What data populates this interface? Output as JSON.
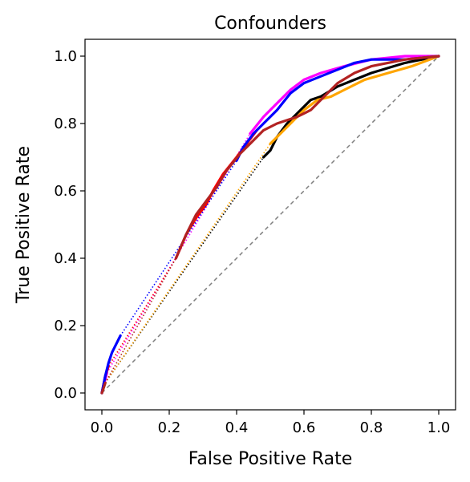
{
  "chart_data": {
    "type": "line",
    "title": "Confounders",
    "xlabel": "False Positive Rate",
    "ylabel": "True Positive Rate",
    "xlim": [
      -0.05,
      1.05
    ],
    "ylim": [
      -0.05,
      1.05
    ],
    "xticks": [
      0.0,
      0.2,
      0.4,
      0.6,
      0.8,
      1.0
    ],
    "yticks": [
      0.0,
      0.2,
      0.4,
      0.6,
      0.8,
      1.0
    ],
    "xtick_labels": [
      "0.0",
      "0.2",
      "0.4",
      "0.6",
      "0.8",
      "1.0"
    ],
    "ytick_labels": [
      "0.0",
      "0.2",
      "0.4",
      "0.6",
      "0.8",
      "1.0"
    ],
    "grid": false,
    "reference_line": {
      "points": [
        [
          0,
          0
        ],
        [
          1,
          1
        ]
      ],
      "color": "#808080",
      "style": "dashed"
    },
    "series": [
      {
        "color": "#000000",
        "gap_style": "dotted",
        "segments": [
          [
            [
              0,
              0
            ],
            [
              0.01,
              0.03
            ]
          ],
          [
            [
              0.48,
              0.7
            ],
            [
              0.5,
              0.72
            ],
            [
              0.52,
              0.76
            ],
            [
              0.55,
              0.8
            ],
            [
              0.58,
              0.83
            ],
            [
              0.62,
              0.87
            ],
            [
              0.65,
              0.88
            ],
            [
              0.7,
              0.91
            ],
            [
              0.75,
              0.93
            ],
            [
              0.8,
              0.95
            ],
            [
              0.9,
              0.98
            ],
            [
              1.0,
              1.0
            ]
          ]
        ]
      },
      {
        "color": "#ffa500",
        "gap_style": "dotted",
        "segments": [
          [
            [
              0,
              0
            ],
            [
              0.01,
              0.03
            ]
          ],
          [
            [
              0.5,
              0.74
            ],
            [
              0.53,
              0.77
            ],
            [
              0.56,
              0.8
            ],
            [
              0.6,
              0.84
            ],
            [
              0.64,
              0.87
            ],
            [
              0.68,
              0.88
            ],
            [
              0.72,
              0.9
            ],
            [
              0.78,
              0.93
            ],
            [
              0.85,
              0.95
            ],
            [
              0.92,
              0.97
            ],
            [
              1.0,
              1.0
            ]
          ]
        ]
      },
      {
        "color": "#ff00ff",
        "gap_style": "dotted",
        "segments": [
          [
            [
              0,
              0
            ],
            [
              0.015,
              0.06
            ]
          ],
          [
            [
              0.44,
              0.77
            ],
            [
              0.48,
              0.82
            ],
            [
              0.52,
              0.86
            ],
            [
              0.56,
              0.9
            ],
            [
              0.6,
              0.93
            ],
            [
              0.65,
              0.95
            ],
            [
              0.72,
              0.97
            ],
            [
              0.8,
              0.99
            ],
            [
              0.9,
              1.0
            ],
            [
              1.0,
              1.0
            ]
          ]
        ]
      },
      {
        "color": "#ff0000",
        "gap_style": "dotted",
        "segments": [
          [
            [
              0,
              0
            ],
            [
              0.01,
              0.05
            ],
            [
              0.02,
              0.08
            ]
          ],
          [
            [
              0.22,
              0.4
            ],
            [
              0.25,
              0.47
            ],
            [
              0.28,
              0.52
            ],
            [
              0.31,
              0.56
            ],
            [
              0.33,
              0.6
            ],
            [
              0.36,
              0.65
            ],
            [
              0.4,
              0.7
            ],
            [
              0.43,
              0.74
            ],
            [
              0.46,
              0.78
            ]
          ]
        ]
      },
      {
        "color": "#0000ff",
        "gap_style": "dotted",
        "segments": [
          [
            [
              0,
              0
            ],
            [
              0.01,
              0.05
            ],
            [
              0.02,
              0.09
            ],
            [
              0.03,
              0.12
            ],
            [
              0.04,
              0.14
            ],
            [
              0.055,
              0.17
            ]
          ],
          [
            [
              0.4,
              0.69
            ],
            [
              0.42,
              0.73
            ],
            [
              0.45,
              0.77
            ],
            [
              0.48,
              0.8
            ],
            [
              0.52,
              0.84
            ],
            [
              0.56,
              0.89
            ],
            [
              0.6,
              0.92
            ],
            [
              0.65,
              0.94
            ],
            [
              0.7,
              0.96
            ],
            [
              0.75,
              0.98
            ],
            [
              0.8,
              0.99
            ],
            [
              0.9,
              0.99
            ],
            [
              1.0,
              1.0
            ]
          ]
        ]
      },
      {
        "color": "#b22222",
        "gap_style": "dotted",
        "segments": [
          [
            [
              0,
              0
            ],
            [
              0.01,
              0.03
            ]
          ],
          [
            [
              0.22,
              0.4
            ],
            [
              0.25,
              0.47
            ],
            [
              0.28,
              0.53
            ],
            [
              0.31,
              0.57
            ],
            [
              0.34,
              0.61
            ],
            [
              0.37,
              0.66
            ],
            [
              0.41,
              0.71
            ],
            [
              0.44,
              0.74
            ],
            [
              0.48,
              0.78
            ],
            [
              0.52,
              0.8
            ],
            [
              0.58,
              0.82
            ],
            [
              0.62,
              0.84
            ],
            [
              0.66,
              0.88
            ],
            [
              0.7,
              0.92
            ],
            [
              0.75,
              0.95
            ],
            [
              0.8,
              0.97
            ],
            [
              0.9,
              0.99
            ],
            [
              1.0,
              1.0
            ]
          ]
        ]
      }
    ]
  }
}
